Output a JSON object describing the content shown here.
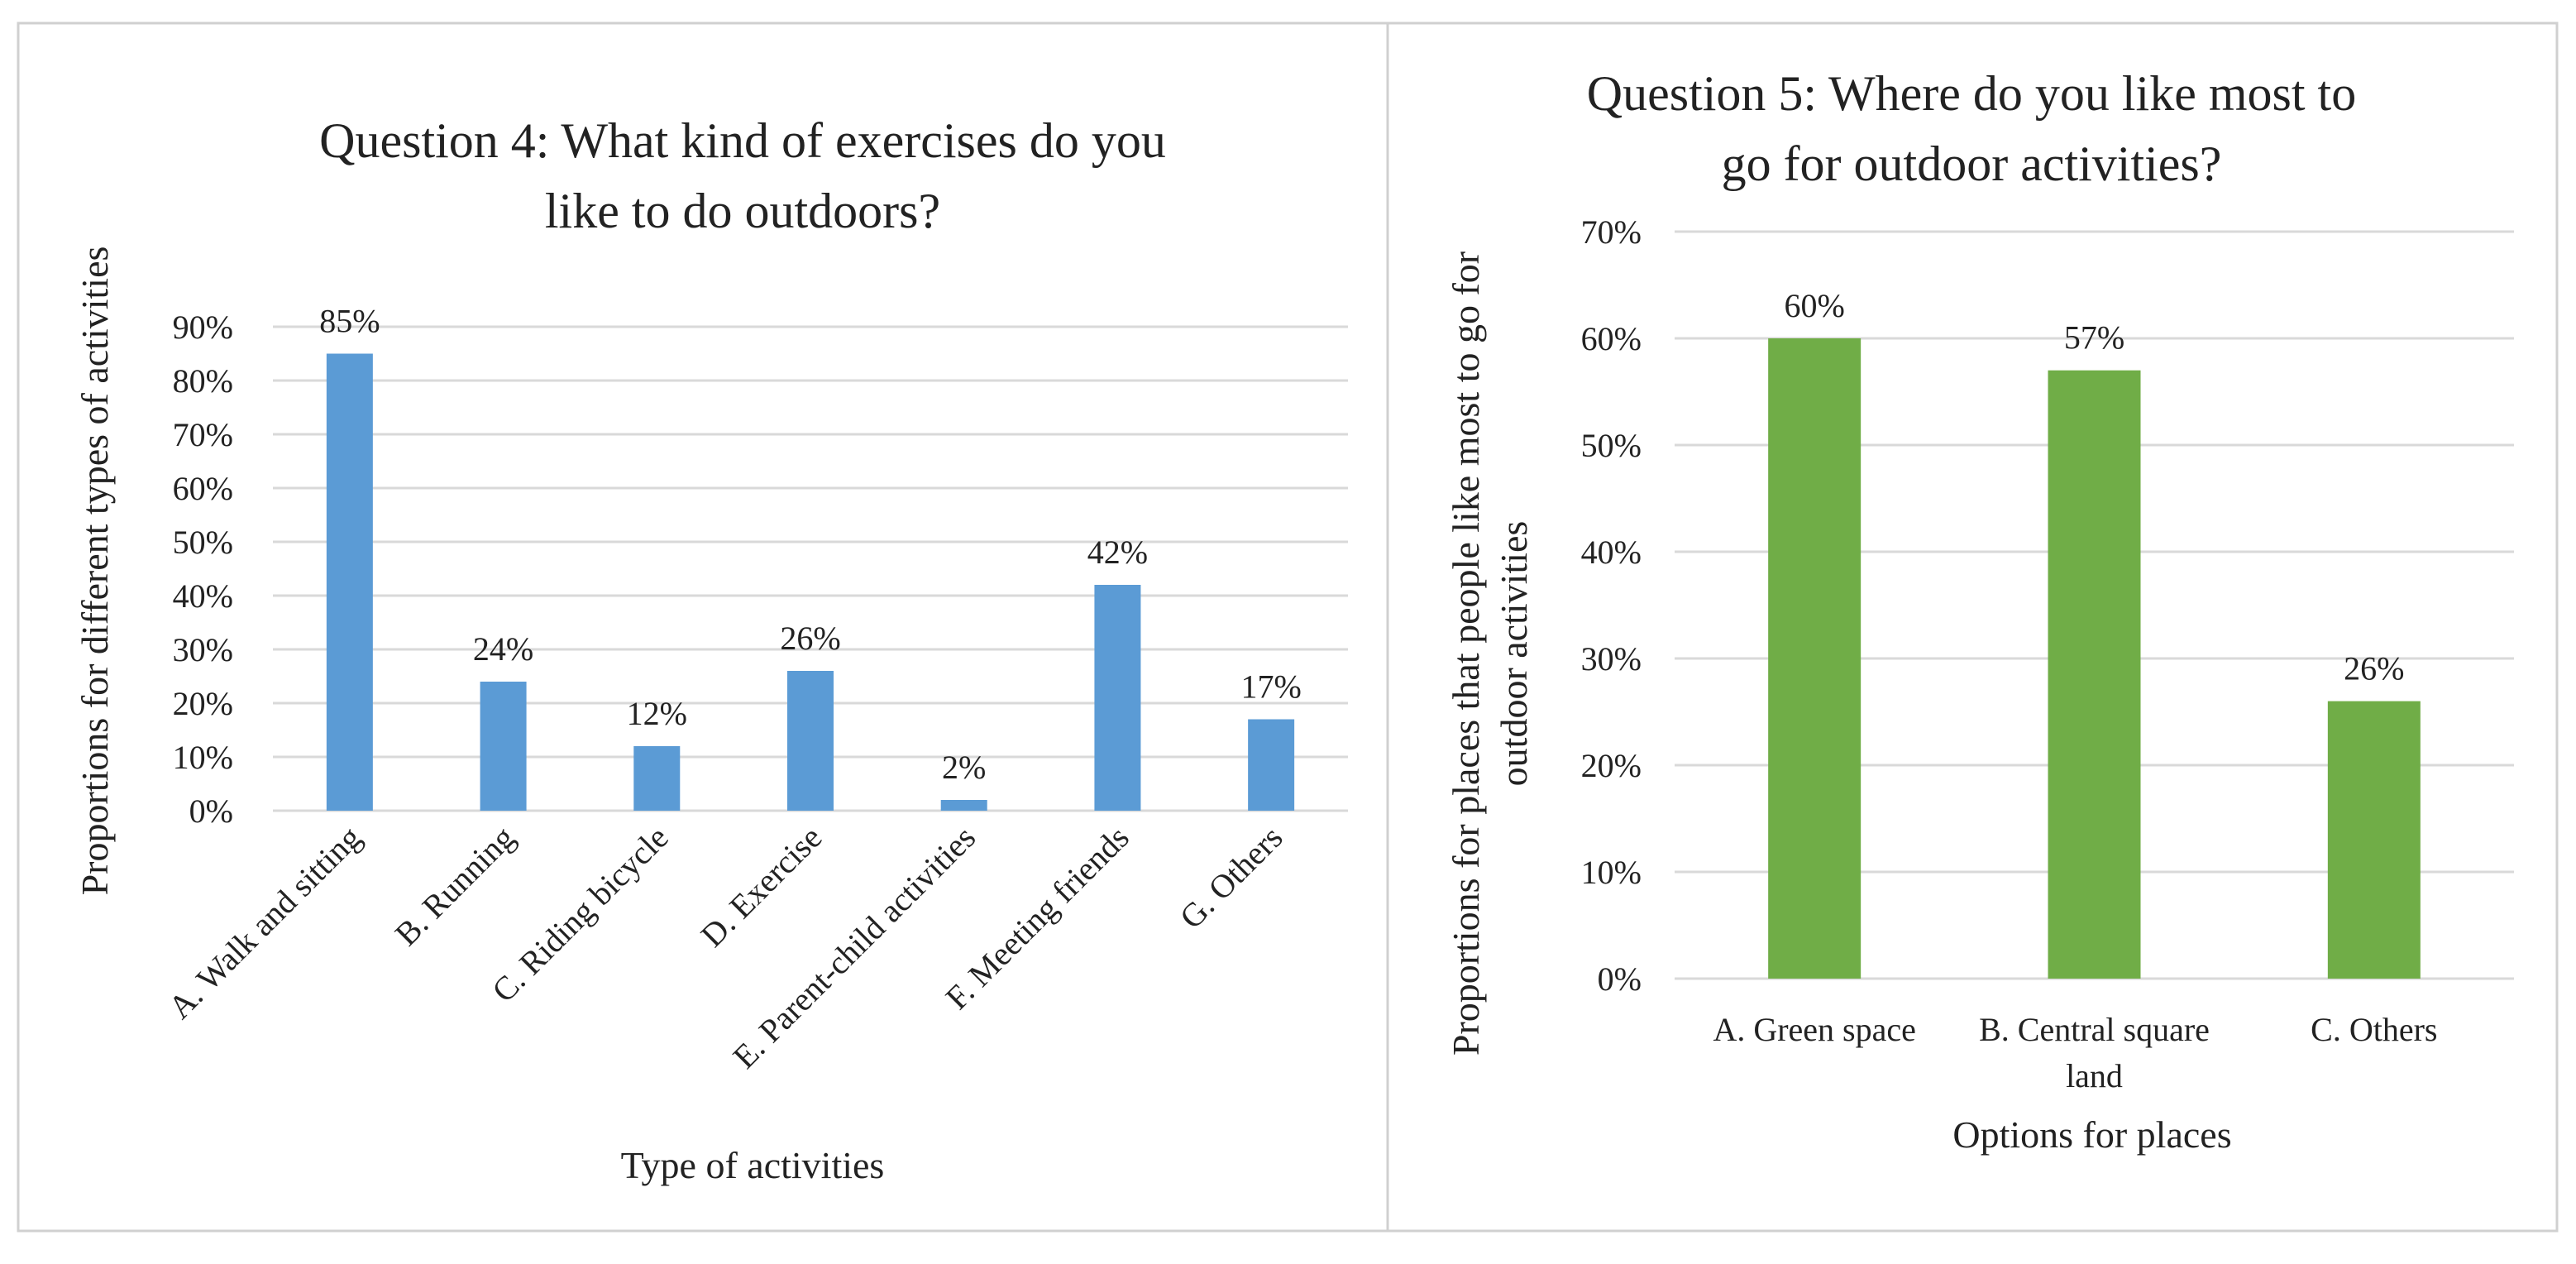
{
  "chart_data": [
    {
      "type": "bar",
      "title_lines": [
        "Question 4: What kind of exercises do you",
        "like to do outdoors?"
      ],
      "xlabel": "Type of activities",
      "ylabel": "Proportions for different types of activities",
      "categories": [
        "A. Walk and sitting",
        "B. Running",
        "C. Riding bicycle",
        "D. Exercise",
        "E. Parent-child activities",
        "F. Meeting friends",
        "G. Others"
      ],
      "values": [
        85,
        24,
        12,
        26,
        2,
        42,
        17
      ],
      "data_labels": [
        "85%",
        "24%",
        "12%",
        "26%",
        "2%",
        "42%",
        "17%"
      ],
      "ylim": [
        0,
        90
      ],
      "yticks": [
        "0%",
        "10%",
        "20%",
        "30%",
        "40%",
        "50%",
        "60%",
        "70%",
        "80%",
        "90%"
      ],
      "bar_color": "#5b9bd5",
      "grid": true
    },
    {
      "type": "bar",
      "title_lines": [
        "Question 5: Where do you like most to",
        "go for outdoor activities?"
      ],
      "xlabel": "Options for places",
      "ylabel_lines": [
        "Proportions for  places that people like most to go for",
        "outdoor activities"
      ],
      "categories": [
        [
          "A. Green space"
        ],
        [
          "B. Central square",
          "land"
        ],
        [
          "C. Others"
        ]
      ],
      "values": [
        60,
        57,
        26
      ],
      "data_labels": [
        "60%",
        "57%",
        "26%"
      ],
      "ylim": [
        0,
        70
      ],
      "yticks": [
        "0%",
        "10%",
        "20%",
        "30%",
        "40%",
        "50%",
        "60%",
        "70%"
      ],
      "bar_color": "#70ad47",
      "grid": true
    }
  ]
}
